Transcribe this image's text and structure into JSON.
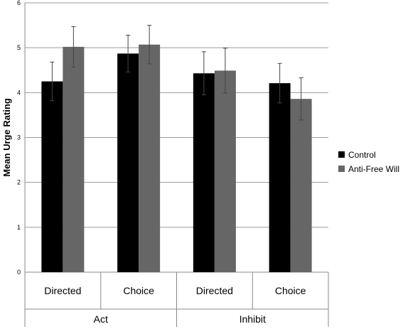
{
  "chart_data": {
    "type": "bar",
    "title": "",
    "ylabel": "Mean Urge Rating",
    "xlabel": "",
    "ylim": [
      0,
      6
    ],
    "yticks": [
      "0",
      "1",
      "2",
      "3",
      "4",
      "5",
      "6"
    ],
    "grid": true,
    "legend_position": "right",
    "groups": [
      {
        "label": "Act",
        "categories": [
          "Directed",
          "Choice"
        ]
      },
      {
        "label": "Inhibit",
        "categories": [
          "Directed",
          "Choice"
        ]
      }
    ],
    "categories": [
      "Directed",
      "Choice",
      "Directed",
      "Choice"
    ],
    "series": [
      {
        "name": "Control",
        "color": "#000000",
        "values": [
          4.25,
          4.87,
          4.43,
          4.21
        ],
        "errors": [
          0.43,
          0.41,
          0.48,
          0.44
        ]
      },
      {
        "name": "Anti-Free Will",
        "color": "#666666",
        "values": [
          5.02,
          5.07,
          4.49,
          3.86
        ],
        "errors": [
          0.45,
          0.43,
          0.5,
          0.47
        ]
      }
    ]
  }
}
